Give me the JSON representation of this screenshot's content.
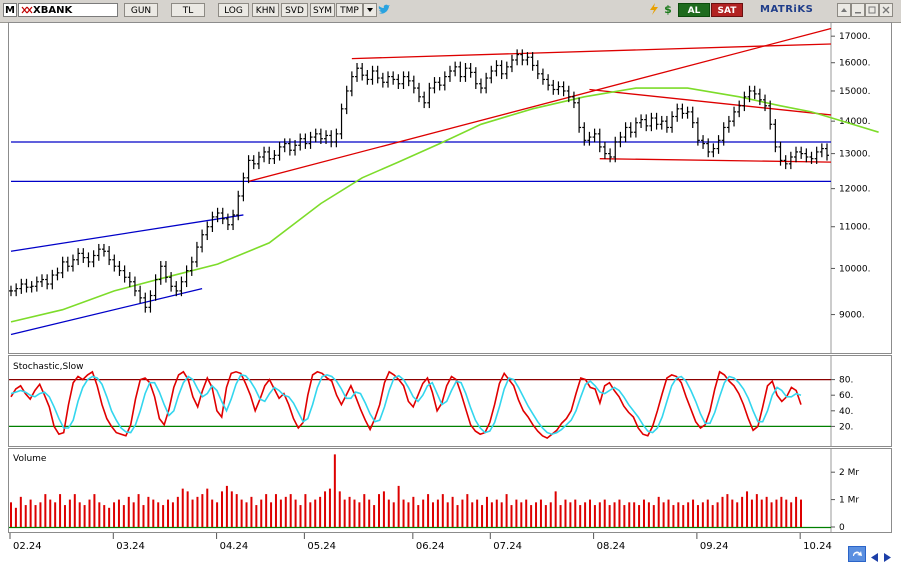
{
  "toolbar": {
    "m_label": "M",
    "symbol": "XBANK",
    "buttons": [
      "GUN",
      "TL",
      "LOG",
      "KHN",
      "SVD",
      "SYM",
      "TMP"
    ],
    "buy_label": "AL",
    "sell_label": "SAT",
    "brand": "MATRiKS",
    "colors": {
      "buy_bg": "#1e6b1e",
      "sell_bg": "#b22222"
    }
  },
  "chart_data": [
    {
      "type": "ohlc",
      "title": "",
      "y_ticks": [
        9000,
        10000,
        11000,
        12000,
        13000,
        14000,
        15000,
        16000,
        17000
      ],
      "y_tick_labels": [
        "9000.",
        "10000.",
        "11000.",
        "12000.",
        "13000.",
        "14000.",
        "15000.",
        "16000.",
        "17000."
      ],
      "log_scale": true,
      "ylim": [
        8300,
        17400
      ],
      "x_tick_labels": [
        "02.24",
        "03.24",
        "04.24",
        "05.24",
        "06.24",
        "07.24",
        "08.24",
        "09.24",
        "10.24"
      ],
      "x_tick_index": [
        0,
        20,
        40,
        57,
        78,
        93,
        113,
        133,
        153
      ],
      "series_close": [
        9500,
        9550,
        9650,
        9580,
        9600,
        9700,
        9750,
        9650,
        9850,
        9900,
        10150,
        10050,
        10200,
        10350,
        10250,
        10150,
        10300,
        10450,
        10400,
        10200,
        10050,
        9950,
        9800,
        9700,
        9500,
        9350,
        9150,
        9400,
        9750,
        10050,
        9800,
        9600,
        9500,
        9700,
        9950,
        10150,
        10500,
        10800,
        11000,
        11250,
        11350,
        11200,
        11050,
        11300,
        11800,
        12300,
        12800,
        12700,
        12900,
        13050,
        12850,
        12950,
        13200,
        13300,
        13100,
        13250,
        13450,
        13300,
        13500,
        13600,
        13450,
        13550,
        13350,
        13600,
        14400,
        15000,
        15500,
        15800,
        15550,
        15400,
        15700,
        15450,
        15300,
        15500,
        15400,
        15250,
        15500,
        15350,
        15100,
        14800,
        14600,
        15100,
        15300,
        15200,
        15500,
        15700,
        15850,
        15500,
        15800,
        15650,
        15250,
        15100,
        15450,
        15700,
        15900,
        15600,
        15850,
        16100,
        16300,
        16100,
        16200,
        15900,
        15600,
        15400,
        15200,
        15050,
        15150,
        15000,
        14800,
        14600,
        13800,
        13400,
        13500,
        13600,
        13200,
        13000,
        12900,
        13350,
        13500,
        13800,
        13650,
        13950,
        14050,
        13850,
        14100,
        13900,
        14000,
        13800,
        14150,
        14400,
        14250,
        14300,
        13950,
        13400,
        13300,
        13050,
        13150,
        13400,
        13800,
        14000,
        14300,
        14500,
        14800,
        15000,
        14900,
        14700,
        14500,
        13900,
        13200,
        12800,
        12700,
        12900,
        13050,
        13000,
        12900,
        12850,
        13050,
        13150,
        12950
      ],
      "ma_close": [
        8850,
        9100,
        9500,
        9800,
        10100,
        10600,
        11600,
        12300,
        12750,
        13300,
        13900,
        14400,
        14800,
        15100,
        15100,
        14800,
        14500,
        14300,
        14050,
        13650
      ],
      "ma_index": [
        0,
        10,
        20,
        30,
        40,
        50,
        60,
        68,
        75,
        83,
        91,
        101,
        111,
        121,
        131,
        141,
        149,
        155,
        160,
        168
      ],
      "trendlines": [
        {
          "color": "#0000c8",
          "from": [
            0,
            10400
          ],
          "to": [
            45,
            11300
          ]
        },
        {
          "color": "#0000c8",
          "from": [
            0,
            8600
          ],
          "to": [
            37,
            9550
          ]
        },
        {
          "color": "#0000c8",
          "from": [
            0,
            13350
          ],
          "to": [
            180,
            13350
          ]
        },
        {
          "color": "#0000c8",
          "from": [
            0,
            12200
          ],
          "to": [
            180,
            12200
          ]
        },
        {
          "color": "#dd0000",
          "from": [
            46,
            12200
          ],
          "to": [
            159,
            17300
          ]
        },
        {
          "color": "#dd0000",
          "from": [
            66,
            16150
          ],
          "to": [
            180,
            16700
          ]
        },
        {
          "color": "#dd0000",
          "from": [
            112,
            15050
          ],
          "to": [
            180,
            14200
          ]
        },
        {
          "color": "#dd0000",
          "from": [
            114,
            12850
          ],
          "to": [
            180,
            12750
          ]
        }
      ]
    },
    {
      "type": "line",
      "title": "Stochastic,Slow",
      "y_ticks": [
        20,
        40,
        60,
        80
      ],
      "y_tick_labels": [
        "20.",
        "40.",
        "60.",
        "80."
      ],
      "ylim": [
        0,
        100
      ],
      "levels": [
        20,
        80
      ],
      "series": [
        {
          "name": "",
          "values": [
            58,
            68,
            72,
            62,
            55,
            66,
            74,
            60,
            45,
            20,
            10,
            12,
            48,
            76,
            84,
            80,
            86,
            90,
            72,
            48,
            30,
            20,
            12,
            10,
            8,
            22,
            55,
            80,
            82,
            76,
            58,
            30,
            22,
            42,
            70,
            86,
            90,
            80,
            58,
            45,
            66,
            82,
            70,
            40,
            32,
            70,
            88,
            90,
            88,
            75,
            60,
            40,
            55,
            72,
            80,
            68,
            56,
            62,
            48,
            30,
            18,
            25,
            60,
            86,
            90,
            88,
            82,
            78,
            60,
            48,
            60,
            72,
            58,
            42,
            28,
            16,
            30,
            48,
            76,
            90,
            86,
            80,
            72,
            52,
            45,
            60,
            75,
            82,
            64,
            40,
            50,
            72,
            84,
            80,
            62,
            42,
            22,
            14,
            10,
            12,
            25,
            48,
            75,
            88,
            80,
            72,
            54,
            40,
            32,
            22,
            14,
            8,
            5,
            10,
            15,
            24,
            30,
            40,
            62,
            82,
            80,
            70,
            68,
            50,
            72,
            76,
            66,
            58,
            46,
            38,
            32,
            18,
            10,
            8,
            20,
            40,
            62,
            82,
            86,
            84,
            76,
            58,
            42,
            26,
            18,
            22,
            40,
            68,
            90,
            86,
            78,
            72,
            62,
            48,
            30,
            15,
            20,
            45,
            72,
            78,
            60,
            52,
            58,
            70,
            66,
            48
          ]
        },
        {
          "name": "",
          "values": [
            62,
            64,
            66,
            64,
            60,
            58,
            62,
            64,
            58,
            45,
            30,
            18,
            18,
            28,
            52,
            70,
            80,
            84,
            82,
            74,
            58,
            40,
            28,
            18,
            13,
            12,
            22,
            40,
            62,
            76,
            76,
            64,
            48,
            34,
            40,
            60,
            76,
            84,
            80,
            68,
            58,
            62,
            72,
            66,
            52,
            40,
            55,
            74,
            86,
            85,
            78,
            68,
            55,
            52,
            62,
            70,
            66,
            60,
            58,
            50,
            38,
            26,
            30,
            48,
            70,
            84,
            86,
            84,
            78,
            68,
            56,
            56,
            64,
            62,
            50,
            36,
            26,
            28,
            45,
            66,
            82,
            85,
            80,
            70,
            58,
            52,
            60,
            72,
            76,
            62,
            48,
            52,
            66,
            78,
            76,
            62,
            44,
            28,
            18,
            12,
            14,
            25,
            45,
            68,
            82,
            80,
            70,
            58,
            46,
            36,
            26,
            18,
            12,
            10,
            12,
            16,
            22,
            28,
            40,
            58,
            74,
            78,
            72,
            64,
            62,
            66,
            70,
            66,
            58,
            48,
            40,
            32,
            22,
            14,
            12,
            18,
            32,
            52,
            72,
            82,
            84,
            78,
            66,
            52,
            36,
            24,
            24,
            38,
            58,
            76,
            84,
            82,
            76,
            68,
            56,
            40,
            26,
            26,
            40,
            60,
            70,
            66,
            58,
            58,
            62,
            60
          ]
        }
      ],
      "colors": [
        "#e00000",
        "#33d6ee"
      ]
    },
    {
      "type": "bar",
      "title": "Volume",
      "y_ticks": [
        0,
        1000000,
        2000000
      ],
      "y_tick_labels": [
        "0",
        "1 Mr",
        "2 Mr"
      ],
      "ylim": [
        0,
        2700000
      ],
      "values": [
        900000,
        700000,
        1100000,
        800000,
        1000000,
        800000,
        900000,
        1200000,
        1000000,
        900000,
        1200000,
        800000,
        1000000,
        1200000,
        900000,
        800000,
        1000000,
        1200000,
        900000,
        800000,
        700000,
        900000,
        1000000,
        800000,
        1100000,
        900000,
        1200000,
        800000,
        1100000,
        1000000,
        900000,
        800000,
        1000000,
        900000,
        1100000,
        1400000,
        1300000,
        1000000,
        1100000,
        1200000,
        1400000,
        1000000,
        900000,
        1300000,
        1500000,
        1300000,
        1200000,
        1000000,
        900000,
        1100000,
        800000,
        1000000,
        1200000,
        900000,
        1200000,
        1000000,
        1100000,
        1200000,
        1000000,
        800000,
        1200000,
        900000,
        1000000,
        1100000,
        1300000,
        1400000,
        2650000,
        1300000,
        1000000,
        1100000,
        1000000,
        900000,
        1200000,
        1000000,
        800000,
        1200000,
        1300000,
        1000000,
        900000,
        1500000,
        1000000,
        900000,
        1100000,
        800000,
        1000000,
        1200000,
        900000,
        1000000,
        1200000,
        900000,
        1100000,
        800000,
        1000000,
        1200000,
        900000,
        1000000,
        800000,
        1100000,
        900000,
        1000000,
        900000,
        1200000,
        800000,
        1000000,
        900000,
        1000000,
        800000,
        900000,
        1000000,
        800000,
        900000,
        1300000,
        800000,
        1000000,
        900000,
        1000000,
        800000,
        900000,
        1000000,
        800000,
        900000,
        1000000,
        800000,
        900000,
        1000000,
        800000,
        900000,
        900000,
        800000,
        1000000,
        900000,
        800000,
        1100000,
        900000,
        1000000,
        800000,
        900000,
        800000,
        900000,
        1000000,
        800000,
        900000,
        1000000,
        800000,
        900000,
        1100000,
        1200000,
        1000000,
        900000,
        1100000,
        1300000,
        1000000,
        1200000,
        1000000,
        1100000,
        900000,
        1000000,
        1100000,
        1000000,
        900000,
        1100000,
        1000000
      ],
      "color": "#dd0000"
    }
  ]
}
